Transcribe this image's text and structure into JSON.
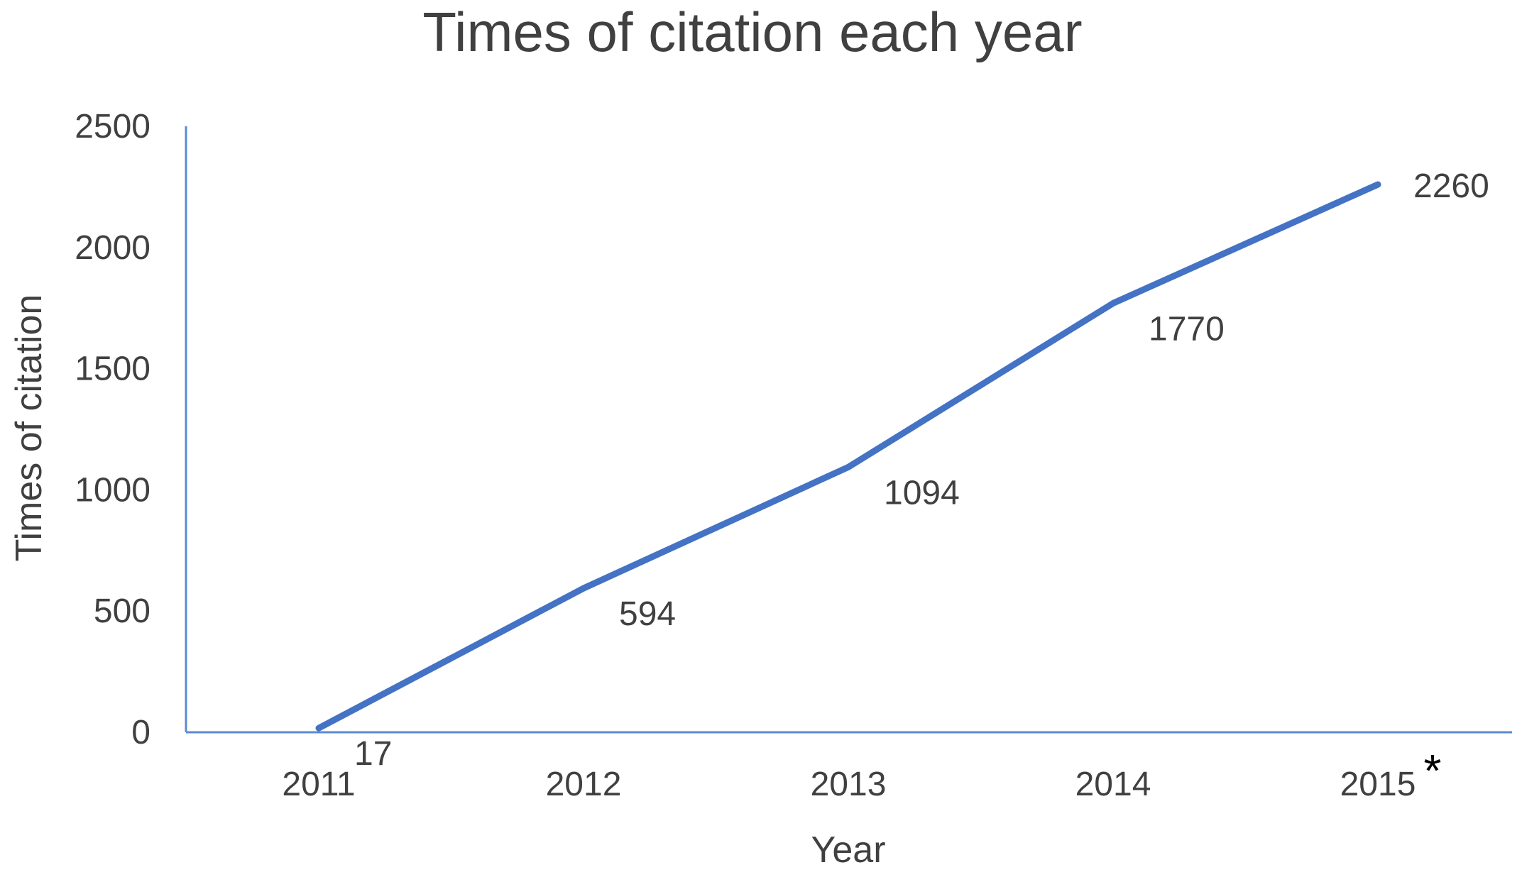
{
  "chart_data": {
    "type": "line",
    "title": "Times of citation each year",
    "xlabel": "Year",
    "ylabel": "Times of citation",
    "categories": [
      "2011",
      "2012",
      "2013",
      "2014",
      "2015"
    ],
    "series": [
      {
        "values": [
          17,
          594,
          1094,
          1770,
          2260
        ]
      }
    ],
    "data_labels": [
      "17",
      "594",
      "1094",
      "1770",
      "2260"
    ],
    "ylim": [
      0,
      2500
    ],
    "yticks": [
      0,
      500,
      1000,
      1500,
      2000,
      2500
    ],
    "ytick_labels": [
      "0",
      "500",
      "1000",
      "1500",
      "2000",
      "2500"
    ],
    "annotation": "*",
    "grid": false,
    "legend": "none",
    "colors": {
      "line": "#4472C4",
      "axis": "#5B8BD0",
      "text": "#404040"
    }
  }
}
